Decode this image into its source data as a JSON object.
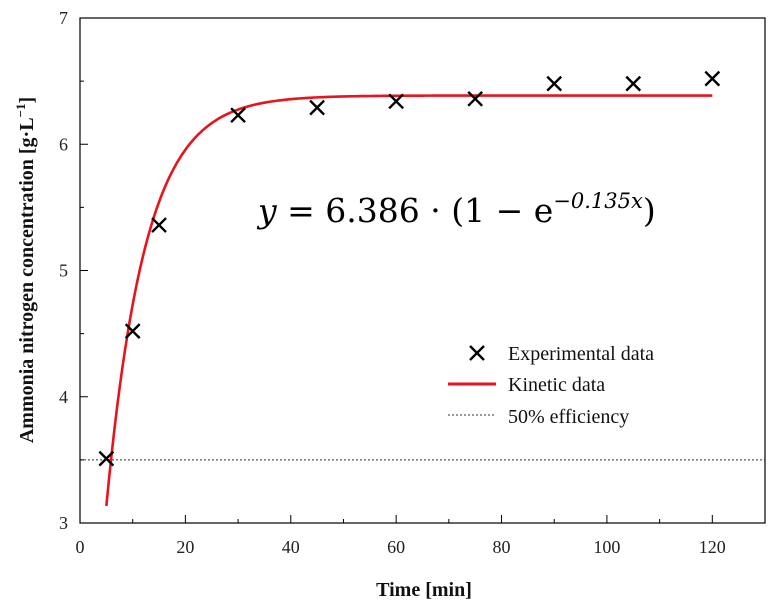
{
  "chart_data": {
    "type": "scatter",
    "title": "",
    "xlabel": "Time [min]",
    "ylabel": "Ammonia nitrogen concentration [g·L",
    "ylabel_sup": "−1",
    "ylabel_end": "]",
    "xlim": [
      0,
      130
    ],
    "ylim": [
      3,
      7
    ],
    "xticks": [
      0,
      20,
      40,
      60,
      80,
      100,
      120
    ],
    "yticks": [
      3,
      4,
      5,
      6,
      7
    ],
    "grid": false,
    "legend_position": "center-right",
    "series": [
      {
        "name": "Experimental data",
        "kind": "scatter",
        "marker": "x",
        "color": "#000000",
        "x": [
          5,
          10,
          15,
          30,
          45,
          60,
          75,
          90,
          105,
          120
        ],
        "y": [
          3.51,
          4.52,
          5.36,
          6.23,
          6.29,
          6.34,
          6.36,
          6.48,
          6.48,
          6.52
        ]
      },
      {
        "name": "Kinetic data",
        "kind": "line",
        "color": "#e8141c",
        "model": {
          "a": 6.386,
          "k": 0.135
        },
        "x_range": [
          5,
          120
        ]
      },
      {
        "name": "50% efficiency",
        "kind": "hline",
        "style": "dotted",
        "color": "#333333",
        "y": 3.5
      }
    ],
    "equation": {
      "lhs": "y",
      "rhs_main": " = 6.386 · (1 − e",
      "exponent": "−0.135x",
      "close": ")"
    }
  }
}
